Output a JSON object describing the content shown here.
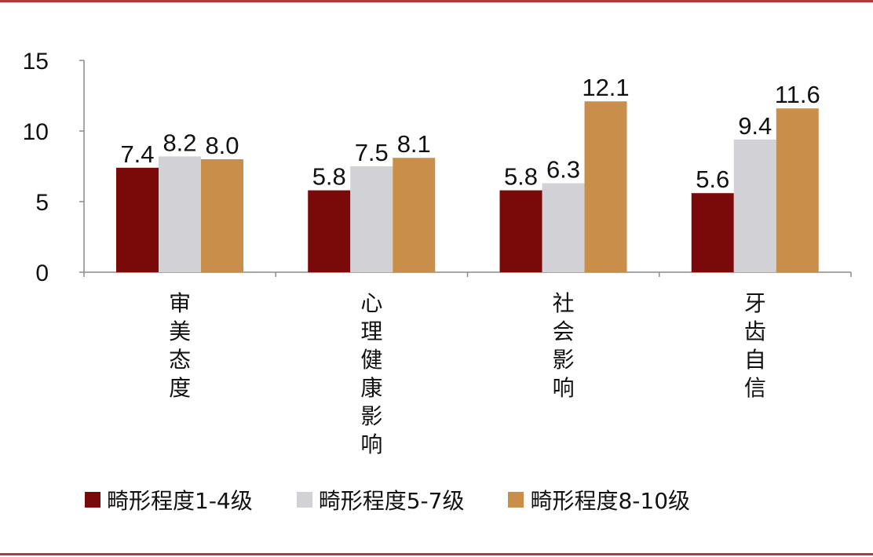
{
  "colors": {
    "border": "#b13a3a",
    "series": [
      "#7a0a0a",
      "#d1d1d6",
      "#c98f4a"
    ]
  },
  "chart_data": {
    "type": "bar",
    "categories": [
      "审美态度",
      "心理健康影响",
      "社会影响",
      "牙齿自信"
    ],
    "series": [
      {
        "name": "畸形程度1-4级",
        "values": [
          7.4,
          5.8,
          5.8,
          5.6
        ]
      },
      {
        "name": "畸形程度5-7级",
        "values": [
          8.2,
          7.5,
          6.3,
          9.4
        ]
      },
      {
        "name": "畸形程度8-10级",
        "values": [
          8.0,
          8.1,
          12.1,
          11.6
        ]
      }
    ],
    "data_labels": [
      [
        "7.4",
        "5.8",
        "5.8",
        "5.6"
      ],
      [
        "8.2",
        "7.5",
        "6.3",
        "9.4"
      ],
      [
        "8.0",
        "8.1",
        "12.1",
        "11.6"
      ]
    ],
    "yticks": [
      "0",
      "5",
      "10",
      "15"
    ],
    "ylim": [
      0,
      15
    ],
    "title": "",
    "xlabel": "",
    "ylabel": "",
    "grid": false,
    "legend_position": "bottom"
  }
}
